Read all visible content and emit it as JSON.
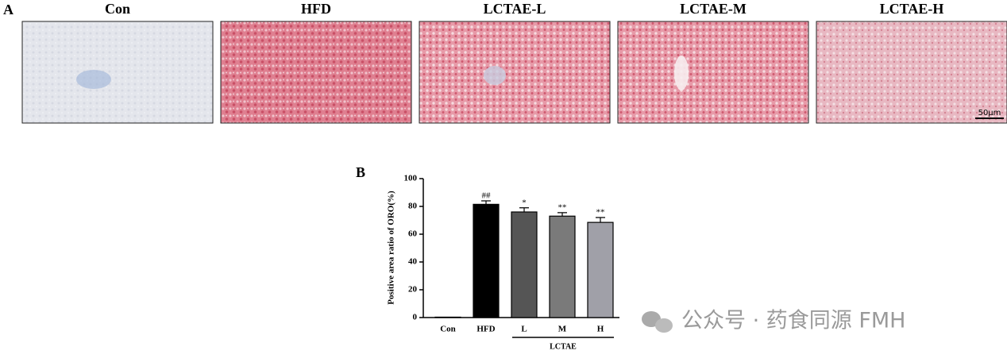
{
  "panel_a": {
    "label": "A",
    "images": [
      "Con",
      "HFD",
      "LCTAE-L",
      "LCTAE-M",
      "LCTAE-H"
    ],
    "scale_bar": "50μm"
  },
  "chart_data": {
    "type": "bar",
    "panel_label": "B",
    "y_label": "Positive area ratio of ORO(%)",
    "categories": [
      "Con",
      "HFD",
      "L",
      "M",
      "H"
    ],
    "group_label": "LCTAE",
    "values": [
      0.3,
      81.5,
      76,
      73,
      68.5
    ],
    "errors": [
      0,
      2.5,
      3,
      2.5,
      3.5
    ],
    "annotations": [
      null,
      "##",
      "*",
      "**",
      "**"
    ],
    "colors": [
      "#000000",
      "#000000",
      "#555555",
      "#7a7a7a",
      "#a0a0a8"
    ],
    "ylim": [
      0,
      100
    ],
    "yticks": [
      0,
      20,
      40,
      60,
      80,
      100
    ]
  },
  "watermark": "公众号 · 药食同源 FMH"
}
